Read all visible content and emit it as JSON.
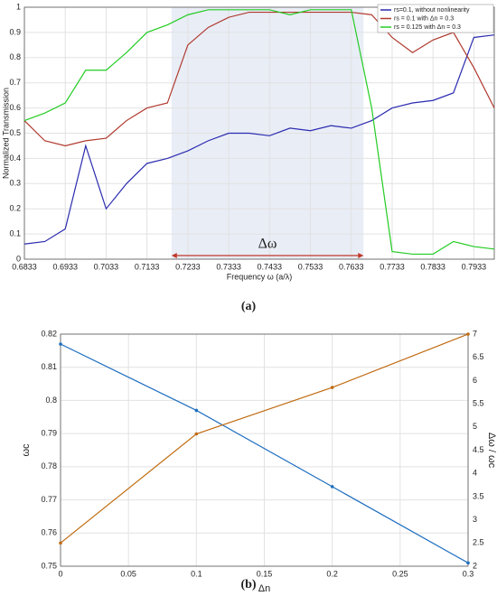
{
  "chart_data": [
    {
      "type": "line",
      "label": "(a)",
      "xlabel": "Frequency ω (a/λ)",
      "ylabel": "Normalized Transmission",
      "xlim": [
        0.6833,
        0.7983
      ],
      "xticks": [
        0.6833,
        0.6933,
        0.7033,
        0.7133,
        0.7233,
        0.7333,
        0.7433,
        0.7533,
        0.7633,
        0.7733,
        0.7833,
        0.7933
      ],
      "ylim": [
        0,
        1
      ],
      "yticks": [
        0,
        0.1,
        0.2,
        0.3,
        0.4,
        0.5,
        0.6,
        0.7,
        0.8,
        0.9,
        1
      ],
      "grid": true,
      "legend": "upper right",
      "shaded_range": [
        0.7193,
        0.7663
      ],
      "annotation": "Δω",
      "x": [
        0.6833,
        0.6883,
        0.6933,
        0.6983,
        0.7033,
        0.7083,
        0.7133,
        0.7183,
        0.7233,
        0.7283,
        0.7333,
        0.7383,
        0.7433,
        0.7483,
        0.7533,
        0.7583,
        0.7633,
        0.7683,
        0.7733,
        0.7783,
        0.7833,
        0.7883,
        0.7933,
        0.7983
      ],
      "series": [
        {
          "name": "rs=0.1, without nonlinearity",
          "color": "#2b2bb0",
          "values": [
            0.06,
            0.07,
            0.12,
            0.45,
            0.2,
            0.3,
            0.38,
            0.4,
            0.43,
            0.47,
            0.5,
            0.5,
            0.49,
            0.52,
            0.51,
            0.53,
            0.52,
            0.55,
            0.6,
            0.62,
            0.63,
            0.66,
            0.88,
            0.89
          ]
        },
        {
          "name": "rs = 0.1 with Δn = 0.3",
          "color": "#b03a2e",
          "values": [
            0.55,
            0.47,
            0.45,
            0.47,
            0.48,
            0.55,
            0.6,
            0.62,
            0.85,
            0.92,
            0.96,
            0.98,
            0.98,
            0.98,
            0.98,
            0.98,
            0.98,
            0.97,
            0.88,
            0.82,
            0.87,
            0.9,
            0.76,
            0.6
          ]
        },
        {
          "name": "rs = 0.125 with Δn = 0.3",
          "color": "#22cc22",
          "values": [
            0.55,
            0.58,
            0.62,
            0.75,
            0.75,
            0.82,
            0.9,
            0.93,
            0.97,
            0.99,
            0.99,
            0.99,
            0.99,
            0.97,
            0.99,
            0.99,
            0.99,
            0.6,
            0.03,
            0.02,
            0.02,
            0.07,
            0.05,
            0.04
          ]
        }
      ]
    },
    {
      "type": "line",
      "label": "(b)",
      "xlabel": "Δn",
      "ylabel": "ωc",
      "y2label": "Δω / ωc",
      "xlim": [
        0,
        0.3
      ],
      "xticks": [
        0,
        0.05,
        0.1,
        0.15,
        0.2,
        0.25,
        0.3
      ],
      "ylim": [
        0.75,
        0.82
      ],
      "yticks": [
        0.75,
        0.76,
        0.77,
        0.78,
        0.79,
        0.8,
        0.81,
        0.82
      ],
      "y2lim": [
        2,
        7
      ],
      "y2ticks": [
        2,
        2.5,
        3,
        3.5,
        4,
        4.5,
        5,
        5.5,
        6,
        6.5,
        7
      ],
      "grid": true,
      "x": [
        0,
        0.1,
        0.2,
        0.3
      ],
      "series": [
        {
          "color": "#1f6fc0",
          "values": [
            0.817,
            0.797,
            0.774,
            0.751
          ]
        },
        {
          "color": "#c06a10",
          "axis": "y2",
          "values": [
            2.5,
            4.85,
            5.85,
            7.0
          ]
        }
      ]
    }
  ]
}
